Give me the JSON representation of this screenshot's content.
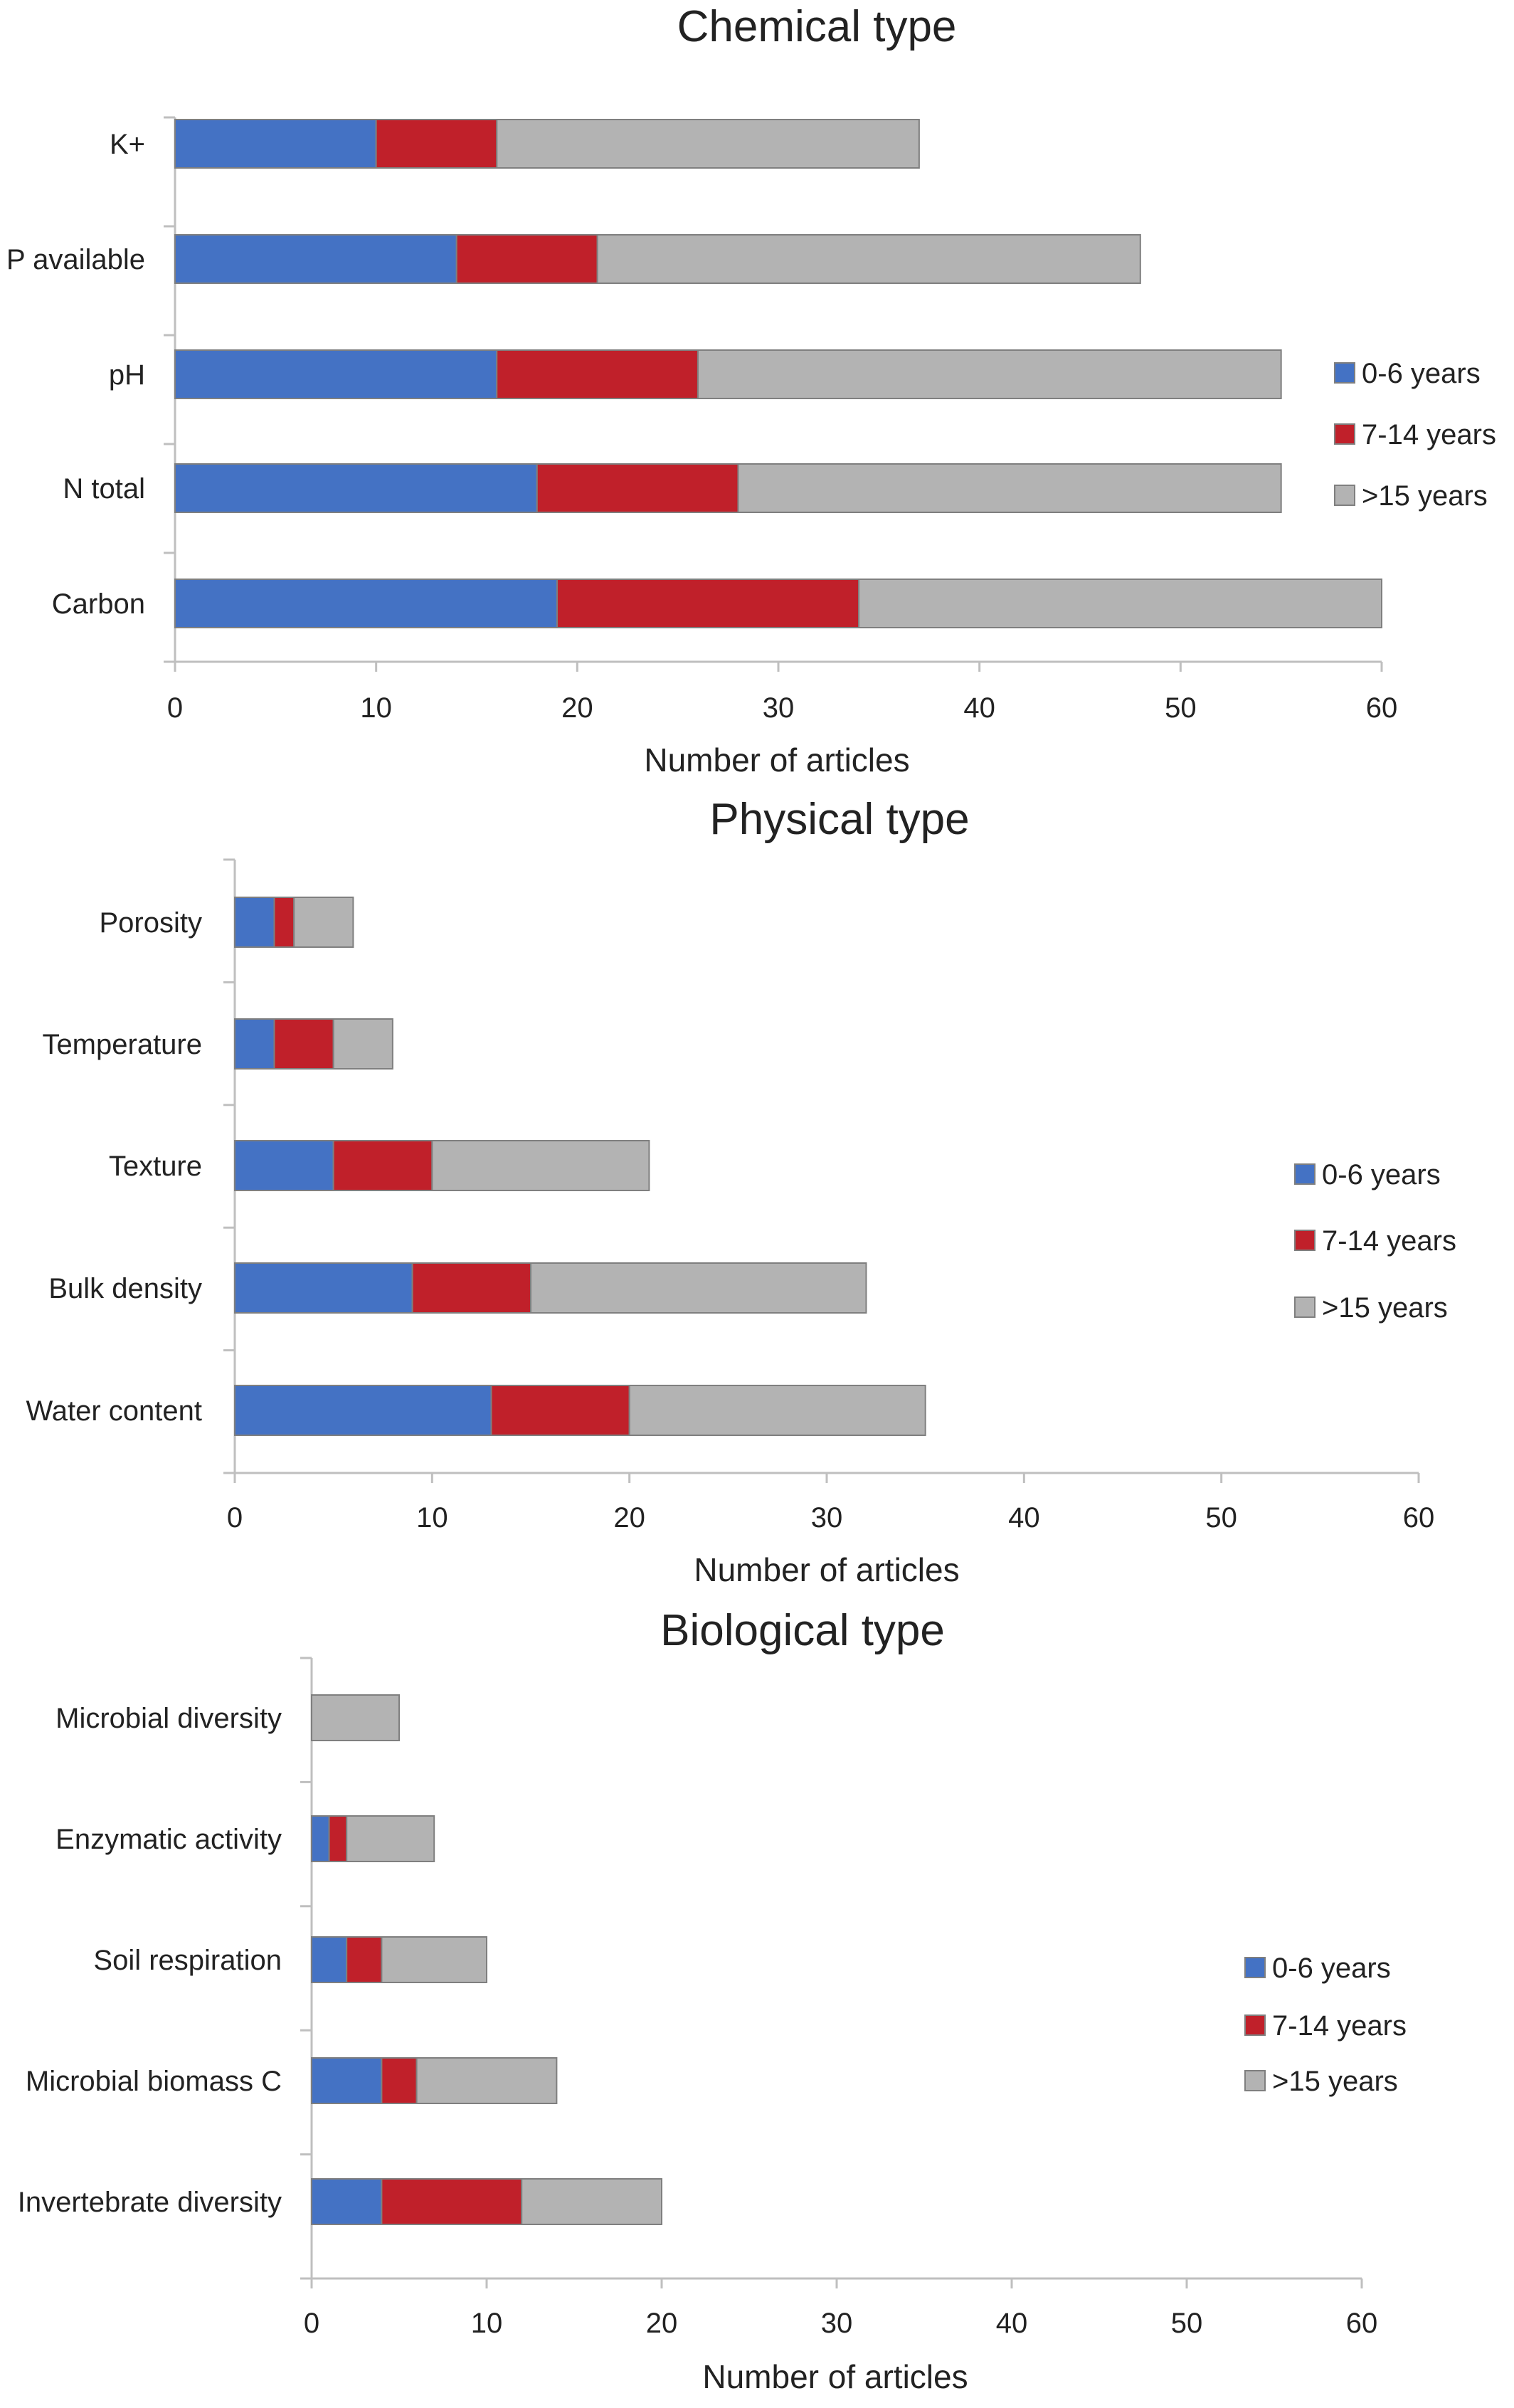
{
  "chart_data": [
    {
      "type": "bar",
      "orientation": "horizontal",
      "stacked": true,
      "title": "Chemical type",
      "xlabel": "Number of articles",
      "ylabel": "",
      "xlim": [
        0,
        60
      ],
      "xticks": [
        0,
        10,
        20,
        30,
        40,
        50,
        60
      ],
      "categories": [
        "K+",
        "P available",
        "pH",
        "N total",
        "Carbon"
      ],
      "series": [
        {
          "name": "0-6 years",
          "color": "#4472c4",
          "values": [
            10,
            14,
            16,
            18,
            19
          ]
        },
        {
          "name": "7-14 years",
          "color": "#c0202a",
          "values": [
            6,
            7,
            10,
            10,
            15
          ]
        },
        {
          "name": ">15 years",
          "color": "#b3b3b3",
          "values": [
            21,
            27,
            29,
            27,
            26
          ]
        }
      ],
      "legend_position": "right",
      "grid": false
    },
    {
      "type": "bar",
      "orientation": "horizontal",
      "stacked": true,
      "title": "Physical type",
      "xlabel": "Number of articles",
      "ylabel": "",
      "xlim": [
        0,
        60
      ],
      "xticks": [
        0,
        10,
        20,
        30,
        40,
        50,
        60
      ],
      "categories": [
        "Porosity",
        "Temperature",
        "Texture",
        "Bulk density",
        "Water content"
      ],
      "series": [
        {
          "name": "0-6 years",
          "color": "#4472c4",
          "values": [
            2,
            2,
            5,
            9,
            13
          ]
        },
        {
          "name": "7-14 years",
          "color": "#c0202a",
          "values": [
            1,
            3,
            5,
            6,
            7
          ]
        },
        {
          "name": ">15 years",
          "color": "#b3b3b3",
          "values": [
            3,
            3,
            11,
            17,
            15
          ]
        }
      ],
      "legend_position": "right",
      "grid": false
    },
    {
      "type": "bar",
      "orientation": "horizontal",
      "stacked": true,
      "title": "Biological type",
      "xlabel": "Number of articles",
      "ylabel": "",
      "xlim": [
        0,
        60
      ],
      "xticks": [
        0,
        10,
        20,
        30,
        40,
        50,
        60
      ],
      "categories": [
        "Microbial diversity",
        "Enzymatic activity",
        "Soil respiration",
        "Microbial biomass C",
        "Invertebrate diversity"
      ],
      "series": [
        {
          "name": "0-6 years",
          "color": "#4472c4",
          "values": [
            0,
            1,
            2,
            4,
            4
          ]
        },
        {
          "name": "7-14 years",
          "color": "#c0202a",
          "values": [
            0,
            1,
            2,
            2,
            8
          ]
        },
        {
          "name": ">15 years",
          "color": "#b3b3b3",
          "values": [
            5,
            5,
            6,
            8,
            8
          ]
        }
      ],
      "legend_position": "right",
      "grid": false
    }
  ]
}
